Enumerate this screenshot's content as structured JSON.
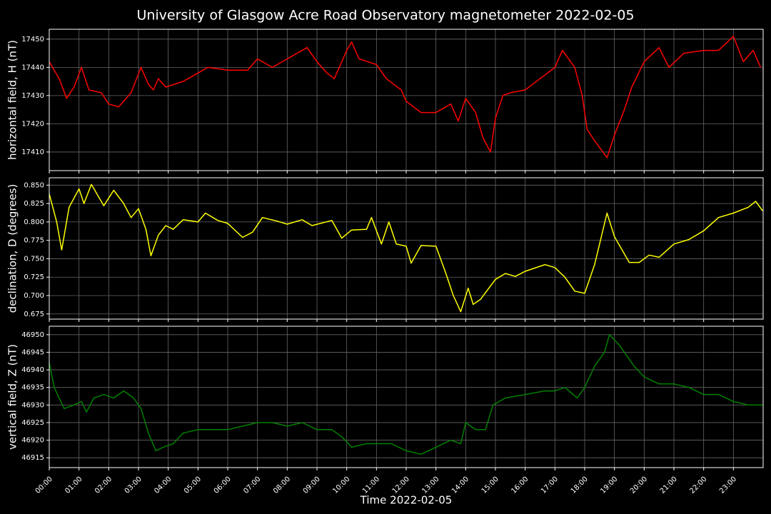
{
  "title": "University of Glasgow Acre Road Observatory magnetometer 2022-02-05",
  "chart_data": [
    {
      "type": "line",
      "ylabel": "horizontal field, H (nT)",
      "color": "#ff0000",
      "grid": true,
      "xlim": [
        "00:00",
        "24:00"
      ],
      "xticks": [
        "00:00",
        "01:00",
        "02:00",
        "03:00",
        "04:00",
        "05:00",
        "06:00",
        "07:00",
        "08:00",
        "09:00",
        "10:00",
        "11:00",
        "12:00",
        "13:00",
        "14:00",
        "15:00",
        "16:00",
        "17:00",
        "18:00",
        "19:00",
        "20:00",
        "21:00",
        "22:00",
        "23:00"
      ],
      "ylim": [
        17403.4,
        17453.5
      ],
      "yticks": [
        17410,
        17420,
        17430,
        17440,
        17450
      ],
      "x": [
        "00:00",
        "00:20",
        "00:35",
        "00:50",
        "01:05",
        "01:20",
        "01:45",
        "02:00",
        "02:20",
        "02:45",
        "03:05",
        "03:20",
        "03:30",
        "03:40",
        "03:55",
        "04:30",
        "05:00",
        "05:20",
        "06:00",
        "06:40",
        "07:00",
        "07:30",
        "08:00",
        "08:40",
        "09:00",
        "09:20",
        "09:35",
        "10:00",
        "10:10",
        "10:25",
        "11:00",
        "11:20",
        "11:50",
        "12:00",
        "12:30",
        "13:00",
        "13:30",
        "13:45",
        "14:00",
        "14:20",
        "14:35",
        "14:50",
        "15:00",
        "15:15",
        "15:30",
        "16:00",
        "16:30",
        "17:00",
        "17:15",
        "17:40",
        "17:55",
        "18:05",
        "18:20",
        "18:45",
        "19:00",
        "19:20",
        "19:35",
        "20:00",
        "20:30",
        "20:50",
        "21:20",
        "22:00",
        "22:30",
        "23:00",
        "23:20",
        "23:40",
        "23:55"
      ],
      "values": [
        17442,
        17436,
        17429,
        17433,
        17440,
        17432,
        17431,
        17427,
        17426,
        17431,
        17440,
        17434,
        17432,
        17436,
        17433,
        17435,
        17438,
        17440,
        17439,
        17439,
        17443,
        17440,
        17443,
        17447,
        17442,
        17438,
        17436,
        17446,
        17449,
        17443,
        17441,
        17436,
        17432,
        17428,
        17424,
        17424,
        17427,
        17421,
        17429,
        17424,
        17415,
        17410,
        17422,
        17430,
        17431,
        17432,
        17436,
        17440,
        17446,
        17440,
        17430,
        17418,
        17414,
        17408,
        17416,
        17425,
        17433,
        17442,
        17447,
        17440,
        17445,
        17446,
        17446,
        17451,
        17442,
        17446,
        17440
      ]
    },
    {
      "type": "line",
      "ylabel": "declination, D (degrees)",
      "color": "#ffff00",
      "grid": true,
      "xlim": [
        "00:00",
        "24:00"
      ],
      "xticks": [
        "00:00",
        "01:00",
        "02:00",
        "03:00",
        "04:00",
        "05:00",
        "06:00",
        "07:00",
        "08:00",
        "09:00",
        "10:00",
        "11:00",
        "12:00",
        "13:00",
        "14:00",
        "15:00",
        "16:00",
        "17:00",
        "18:00",
        "19:00",
        "20:00",
        "21:00",
        "22:00",
        "23:00"
      ],
      "ylim": [
        0.668,
        0.86
      ],
      "yticks": [
        {
          "value": 0.675,
          "label": "0.675"
        },
        {
          "value": 0.7,
          "label": "0.700"
        },
        {
          "value": 0.725,
          "label": "0.725"
        },
        {
          "value": 0.75,
          "label": "0.750"
        },
        {
          "value": 0.775,
          "label": "0.775"
        },
        {
          "value": 0.8,
          "label": "0.800"
        },
        {
          "value": 0.825,
          "label": "0.825"
        },
        {
          "value": 0.85,
          "label": "0.850"
        }
      ],
      "x": [
        "00:00",
        "00:15",
        "00:25",
        "00:40",
        "01:00",
        "01:10",
        "01:25",
        "01:50",
        "02:10",
        "02:30",
        "02:45",
        "03:00",
        "03:15",
        "03:25",
        "03:40",
        "03:55",
        "04:10",
        "04:30",
        "05:00",
        "05:15",
        "05:40",
        "06:00",
        "06:30",
        "06:50",
        "07:10",
        "07:40",
        "08:00",
        "08:30",
        "08:50",
        "09:30",
        "09:50",
        "10:10",
        "10:40",
        "10:50",
        "11:10",
        "11:25",
        "11:40",
        "12:00",
        "12:10",
        "12:30",
        "13:00",
        "13:20",
        "13:35",
        "13:50",
        "14:05",
        "14:15",
        "14:30",
        "15:00",
        "15:20",
        "15:40",
        "16:00",
        "16:40",
        "17:00",
        "17:20",
        "17:40",
        "18:00",
        "18:20",
        "18:45",
        "19:00",
        "19:30",
        "19:50",
        "20:10",
        "20:30",
        "21:00",
        "21:30",
        "22:00",
        "22:30",
        "23:00",
        "23:30",
        "23:45",
        "23:59"
      ],
      "values": [
        0.838,
        0.8,
        0.762,
        0.82,
        0.845,
        0.825,
        0.851,
        0.822,
        0.843,
        0.825,
        0.806,
        0.818,
        0.79,
        0.754,
        0.782,
        0.795,
        0.79,
        0.803,
        0.8,
        0.812,
        0.802,
        0.798,
        0.779,
        0.786,
        0.806,
        0.801,
        0.797,
        0.803,
        0.795,
        0.802,
        0.778,
        0.789,
        0.79,
        0.806,
        0.77,
        0.8,
        0.77,
        0.767,
        0.744,
        0.768,
        0.767,
        0.73,
        0.7,
        0.678,
        0.71,
        0.688,
        0.695,
        0.722,
        0.73,
        0.726,
        0.733,
        0.742,
        0.738,
        0.725,
        0.706,
        0.703,
        0.742,
        0.812,
        0.78,
        0.745,
        0.745,
        0.755,
        0.752,
        0.77,
        0.776,
        0.788,
        0.806,
        0.812,
        0.82,
        0.828,
        0.815
      ]
    },
    {
      "type": "line",
      "ylabel": "vertical field, Z (nT)",
      "xlabel": "Time 2022-02-05",
      "color": "#008000",
      "grid": true,
      "xlim": [
        "00:00",
        "24:00"
      ],
      "xticks": [
        "00:00",
        "01:00",
        "02:00",
        "03:00",
        "04:00",
        "05:00",
        "06:00",
        "07:00",
        "08:00",
        "09:00",
        "10:00",
        "11:00",
        "12:00",
        "13:00",
        "14:00",
        "15:00",
        "16:00",
        "17:00",
        "18:00",
        "19:00",
        "20:00",
        "21:00",
        "22:00",
        "23:00"
      ],
      "ylim": [
        46912.2,
        46952.4
      ],
      "yticks": [
        46915,
        46920,
        46925,
        46930,
        46935,
        46940,
        46945,
        46950
      ],
      "x": [
        "00:00",
        "00:10",
        "00:30",
        "00:50",
        "01:05",
        "01:15",
        "01:30",
        "01:50",
        "02:10",
        "02:30",
        "02:50",
        "03:05",
        "03:20",
        "03:35",
        "03:50",
        "04:10",
        "04:30",
        "05:00",
        "06:00",
        "06:30",
        "07:00",
        "07:30",
        "08:00",
        "08:30",
        "09:00",
        "09:30",
        "09:50",
        "10:10",
        "10:40",
        "11:00",
        "11:30",
        "12:00",
        "12:30",
        "13:00",
        "13:30",
        "13:50",
        "14:00",
        "14:20",
        "14:40",
        "14:55",
        "15:20",
        "16:00",
        "16:40",
        "17:00",
        "17:20",
        "17:45",
        "18:00",
        "18:20",
        "18:40",
        "18:50",
        "19:10",
        "19:40",
        "20:00",
        "20:30",
        "21:00",
        "21:30",
        "22:00",
        "22:30",
        "23:00",
        "23:30",
        "23:59"
      ],
      "values": [
        46942,
        46935,
        46929,
        46930,
        46931,
        46928,
        46932,
        46933,
        46932,
        46934,
        46932,
        46929,
        46922,
        46917,
        46918,
        46919,
        46922,
        46923,
        46923,
        46924,
        46925,
        46925,
        46924,
        46925,
        46923,
        46923,
        46921,
        46918,
        46919,
        46919,
        46919,
        46917,
        46916,
        46918,
        46920,
        46919,
        46925,
        46923,
        46923,
        46930,
        46932,
        46933,
        46934,
        46934,
        46935,
        46932,
        46935,
        46941,
        46945,
        46950,
        46947,
        46941,
        46938,
        46936,
        46936,
        46935,
        46933,
        46933,
        46931,
        46930,
        46930
      ]
    }
  ]
}
